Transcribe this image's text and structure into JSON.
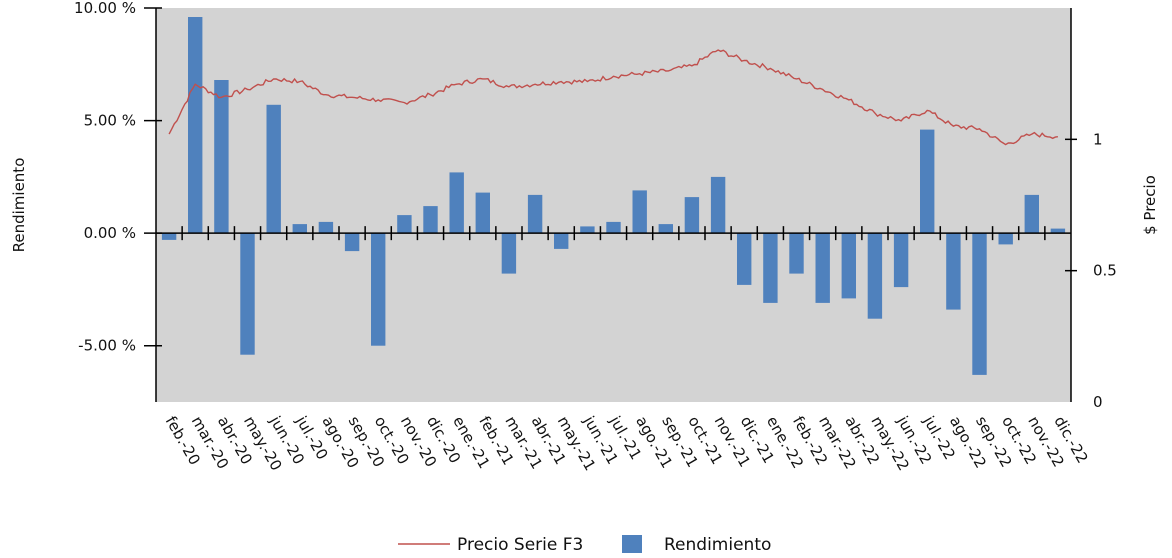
{
  "chart_data": {
    "type": "bar+line",
    "categories": [
      "feb.-20",
      "mar.-20",
      "abr.-20",
      "may.-20",
      "jun.-20",
      "jul.-20",
      "ago.-20",
      "sep.-20",
      "oct.-20",
      "nov.-20",
      "dic.-20",
      "ene.-21",
      "feb.-21",
      "mar.-21",
      "abr.-21",
      "may.-21",
      "jun.-21",
      "jul.-21",
      "ago.-21",
      "sep.-21",
      "oct.-21",
      "nov.-21",
      "dic.-21",
      "ene.-22",
      "feb.-22",
      "mar.-22",
      "abr.-22",
      "may.-22",
      "jun.-22",
      "jul.-22",
      "ago.-22",
      "sep.-22",
      "oct.-22",
      "nov.-22",
      "dic.-22"
    ],
    "series": [
      {
        "name": "Rendimiento",
        "axis": "left",
        "type": "bar",
        "color": "#4f81bd",
        "values": [
          -0.3,
          9.6,
          6.8,
          -5.4,
          5.7,
          0.4,
          0.5,
          -0.8,
          -5.0,
          0.8,
          1.2,
          2.7,
          1.8,
          -1.8,
          1.7,
          -0.7,
          0.3,
          0.5,
          1.9,
          0.4,
          1.6,
          2.5,
          -2.3,
          -3.1,
          -1.8,
          -3.1,
          -2.9,
          -3.8,
          -2.4,
          4.6,
          -3.4,
          -6.3,
          -0.5,
          1.7,
          0.2
        ]
      },
      {
        "name": "Precio Serie F3",
        "axis": "right",
        "type": "line",
        "color": "#c0504d",
        "values": [
          1.02,
          1.21,
          1.16,
          1.19,
          1.23,
          1.22,
          1.17,
          1.16,
          1.15,
          1.14,
          1.17,
          1.21,
          1.23,
          1.2,
          1.21,
          1.22,
          1.22,
          1.24,
          1.25,
          1.26,
          1.28,
          1.34,
          1.3,
          1.27,
          1.23,
          1.19,
          1.15,
          1.1,
          1.07,
          1.11,
          1.05,
          1.04,
          0.98,
          1.02,
          1.01
        ]
      }
    ],
    "y_left": {
      "label": "Rendimiento",
      "range": [
        -7.5,
        10.0
      ],
      "ticks": [
        10,
        5,
        0,
        -5
      ],
      "tick_labels": [
        "10.00 %",
        "5.00 %",
        "0.00 %",
        "-5.00 %"
      ]
    },
    "y_right": {
      "label": "$ Precio",
      "range": [
        0,
        1.5
      ],
      "ticks": [
        1,
        0.5,
        0
      ],
      "tick_labels": [
        "1",
        "0.5",
        "0"
      ]
    },
    "grid": false,
    "plot_background": "#d3d3d3",
    "legend": {
      "position": "bottom",
      "entries": [
        "Precio Serie F3",
        "Rendimiento"
      ]
    }
  }
}
